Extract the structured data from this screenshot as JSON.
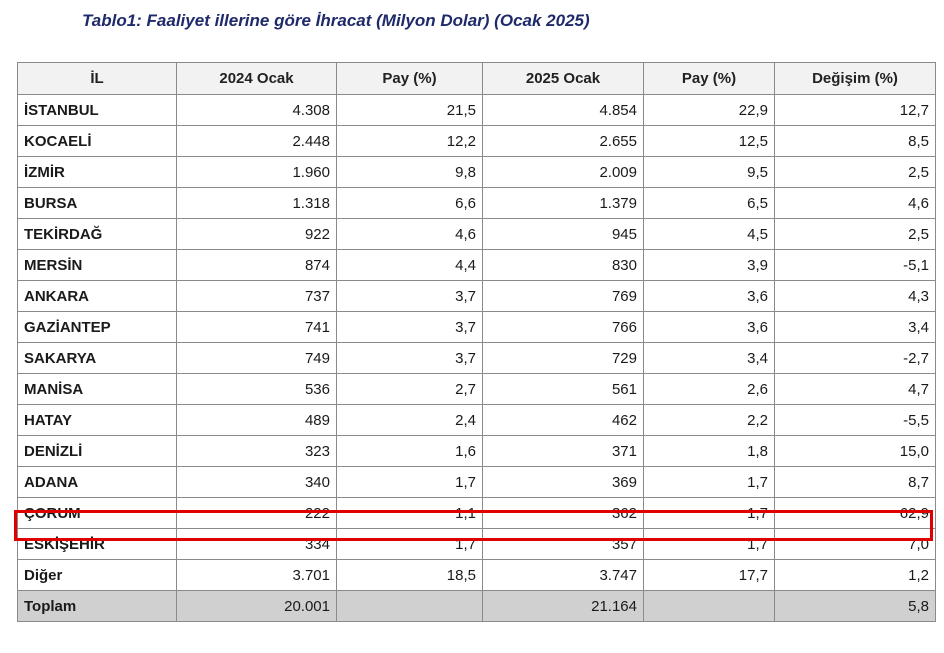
{
  "title": "Tablo1: Faaliyet illerine göre İhracat (Milyon Dolar) (Ocak 2025)",
  "table": {
    "columns": [
      "İL",
      "2024 Ocak",
      "Pay  (%)",
      "2025 Ocak",
      "Pay  (%)",
      "Değişim (%)"
    ],
    "rows": [
      [
        "İSTANBUL",
        "4.308",
        "21,5",
        "4.854",
        "22,9",
        "12,7"
      ],
      [
        "KOCAELİ",
        "2.448",
        "12,2",
        "2.655",
        "12,5",
        "8,5"
      ],
      [
        "İZMİR",
        "1.960",
        "9,8",
        "2.009",
        "9,5",
        "2,5"
      ],
      [
        "BURSA",
        "1.318",
        "6,6",
        "1.379",
        "6,5",
        "4,6"
      ],
      [
        "TEKİRDAĞ",
        "922",
        "4,6",
        "945",
        "4,5",
        "2,5"
      ],
      [
        "MERSİN",
        "874",
        "4,4",
        "830",
        "3,9",
        "-5,1"
      ],
      [
        "ANKARA",
        "737",
        "3,7",
        "769",
        "3,6",
        "4,3"
      ],
      [
        "GAZİANTEP",
        "741",
        "3,7",
        "766",
        "3,6",
        "3,4"
      ],
      [
        "SAKARYA",
        "749",
        "3,7",
        "729",
        "3,4",
        "-2,7"
      ],
      [
        "MANİSA",
        "536",
        "2,7",
        "561",
        "2,6",
        "4,7"
      ],
      [
        "HATAY",
        "489",
        "2,4",
        "462",
        "2,2",
        "-5,5"
      ],
      [
        "DENİZLİ",
        "323",
        "1,6",
        "371",
        "1,8",
        "15,0"
      ],
      [
        "ADANA",
        "340",
        "1,7",
        "369",
        "1,7",
        "8,7"
      ],
      [
        "ÇORUM",
        "222",
        "1,1",
        "362",
        "1,7",
        "62,9"
      ],
      [
        "ESKİŞEHİR",
        "334",
        "1,7",
        "357",
        "1,7",
        "7,0"
      ],
      [
        "Diğer",
        "3.701",
        "18,5",
        "3.747",
        "17,7",
        "1,2"
      ]
    ],
    "total": [
      "Toplam",
      "20.001",
      "",
      "21.164",
      "",
      "5,8"
    ],
    "highlighted_row": "ÇORUM",
    "highlight_color": "#e00000"
  }
}
